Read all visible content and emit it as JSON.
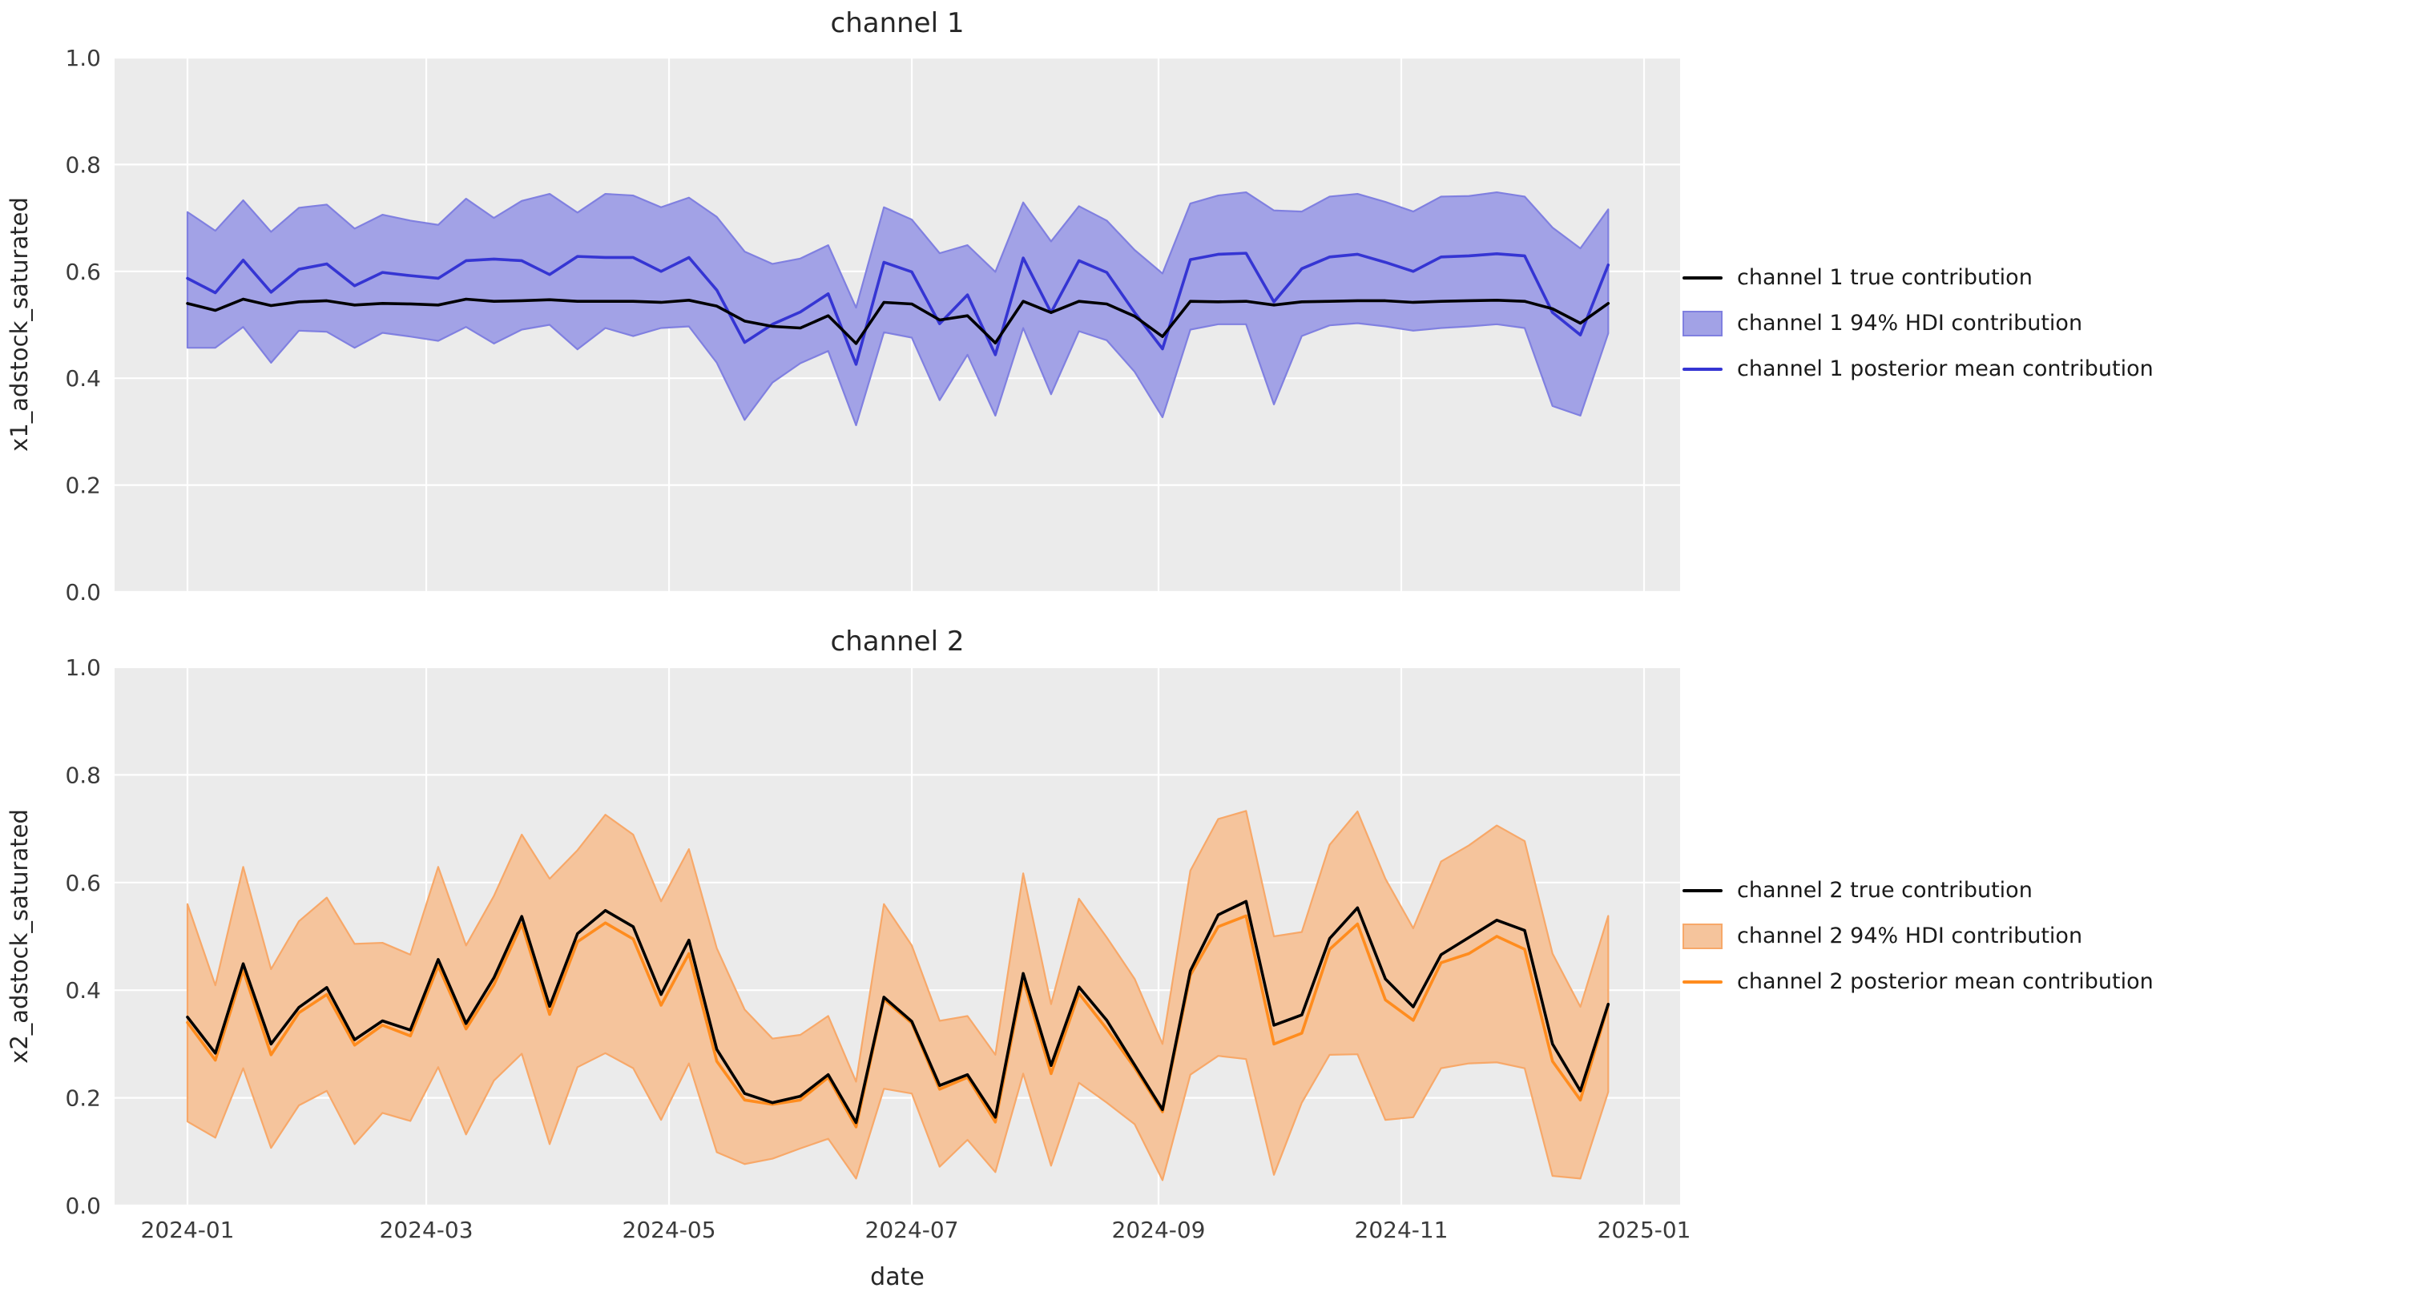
{
  "figure": {
    "background": "#ffffff",
    "axes_background": "#ebebeb",
    "grid_color": "#ffffff",
    "xlabel": "date",
    "xtick_days": [
      0,
      60,
      121,
      182,
      244,
      305,
      366
    ],
    "xtick_labels": [
      "2024-01",
      "2024-03",
      "2024-05",
      "2024-07",
      "2024-09",
      "2024-11",
      "2025-01"
    ],
    "ytick_values": [
      0.0,
      0.2,
      0.4,
      0.6,
      0.8,
      1.0
    ],
    "ytick_labels": [
      "0.0",
      "0.2",
      "0.4",
      "0.6",
      "0.8",
      "1.0"
    ]
  },
  "chart_data": [
    {
      "type": "line",
      "title": "channel 1",
      "xlabel": "",
      "ylabel": "x1_adstock_saturated",
      "ylim": [
        0.0,
        1.0
      ],
      "grid": true,
      "legend_position": "right",
      "legend": [
        "channel 1 true contribution",
        "channel 1 94% HDI contribution",
        "channel 1 posterior mean contribution"
      ],
      "colors": {
        "true_line": "#000000",
        "mean_line": "#3535d3",
        "band_fill": "#a2a2e6",
        "band_edge": "#8080e0"
      },
      "x": [
        "2024-01-01",
        "2024-01-08",
        "2024-01-15",
        "2024-01-22",
        "2024-01-29",
        "2024-02-05",
        "2024-02-12",
        "2024-02-19",
        "2024-02-26",
        "2024-03-04",
        "2024-03-11",
        "2024-03-18",
        "2024-03-25",
        "2024-04-01",
        "2024-04-08",
        "2024-04-15",
        "2024-04-22",
        "2024-04-29",
        "2024-05-06",
        "2024-05-13",
        "2024-05-20",
        "2024-05-27",
        "2024-06-03",
        "2024-06-10",
        "2024-06-17",
        "2024-06-24",
        "2024-07-01",
        "2024-07-08",
        "2024-07-15",
        "2024-07-22",
        "2024-07-29",
        "2024-08-05",
        "2024-08-12",
        "2024-08-19",
        "2024-08-26",
        "2024-09-02",
        "2024-09-09",
        "2024-09-16",
        "2024-09-23",
        "2024-09-30",
        "2024-10-07",
        "2024-10-14",
        "2024-10-21",
        "2024-10-28",
        "2024-11-04",
        "2024-11-11",
        "2024-11-18",
        "2024-11-25",
        "2024-12-02",
        "2024-12-09",
        "2024-12-16",
        "2024-12-23"
      ],
      "series": [
        {
          "name": "true_contribution",
          "values": [
            0.54,
            0.527,
            0.548,
            0.536,
            0.543,
            0.545,
            0.537,
            0.54,
            0.539,
            0.537,
            0.548,
            0.544,
            0.545,
            0.547,
            0.544,
            0.544,
            0.544,
            0.542,
            0.546,
            0.535,
            0.507,
            0.497,
            0.494,
            0.517,
            0.465,
            0.542,
            0.539,
            0.509,
            0.517,
            0.466,
            0.544,
            0.523,
            0.544,
            0.539,
            0.516,
            0.478,
            0.544,
            0.543,
            0.544,
            0.537,
            0.543,
            0.544,
            0.545,
            0.545,
            0.542,
            0.544,
            0.545,
            0.546,
            0.544,
            0.53,
            0.503,
            0.54
          ]
        },
        {
          "name": "posterior_mean",
          "values": [
            0.587,
            0.56,
            0.621,
            0.561,
            0.604,
            0.614,
            0.573,
            0.598,
            0.592,
            0.587,
            0.62,
            0.623,
            0.62,
            0.594,
            0.628,
            0.626,
            0.626,
            0.6,
            0.626,
            0.565,
            0.467,
            0.501,
            0.524,
            0.558,
            0.426,
            0.617,
            0.599,
            0.502,
            0.556,
            0.444,
            0.625,
            0.523,
            0.62,
            0.598,
            0.523,
            0.455,
            0.622,
            0.632,
            0.634,
            0.543,
            0.605,
            0.627,
            0.632,
            0.617,
            0.6,
            0.627,
            0.629,
            0.633,
            0.629,
            0.523,
            0.481,
            0.612
          ]
        },
        {
          "name": "hdi_94_low",
          "values": [
            0.457,
            0.457,
            0.496,
            0.429,
            0.489,
            0.487,
            0.457,
            0.485,
            0.478,
            0.47,
            0.496,
            0.465,
            0.491,
            0.5,
            0.454,
            0.494,
            0.479,
            0.494,
            0.497,
            0.429,
            0.322,
            0.392,
            0.428,
            0.451,
            0.312,
            0.486,
            0.476,
            0.359,
            0.444,
            0.33,
            0.494,
            0.37,
            0.488,
            0.471,
            0.412,
            0.327,
            0.491,
            0.501,
            0.501,
            0.351,
            0.479,
            0.499,
            0.503,
            0.497,
            0.489,
            0.494,
            0.497,
            0.501,
            0.494,
            0.348,
            0.33,
            0.484
          ]
        },
        {
          "name": "hdi_94_high",
          "values": [
            0.711,
            0.676,
            0.733,
            0.674,
            0.719,
            0.725,
            0.68,
            0.706,
            0.695,
            0.687,
            0.736,
            0.7,
            0.732,
            0.745,
            0.71,
            0.745,
            0.742,
            0.72,
            0.738,
            0.702,
            0.637,
            0.614,
            0.624,
            0.649,
            0.532,
            0.72,
            0.697,
            0.634,
            0.649,
            0.599,
            0.729,
            0.656,
            0.722,
            0.695,
            0.64,
            0.596,
            0.727,
            0.742,
            0.748,
            0.714,
            0.712,
            0.74,
            0.745,
            0.73,
            0.712,
            0.74,
            0.741,
            0.748,
            0.74,
            0.682,
            0.643,
            0.716
          ]
        }
      ]
    },
    {
      "type": "line",
      "title": "channel 2",
      "xlabel": "date",
      "ylabel": "x2_adstock_saturated",
      "ylim": [
        0.0,
        1.0
      ],
      "grid": true,
      "legend_position": "right",
      "legend": [
        "channel 2 true contribution",
        "channel 2 94% HDI contribution",
        "channel 2 posterior mean contribution"
      ],
      "colors": {
        "true_line": "#000000",
        "mean_line": "#ff8c1e",
        "band_fill": "#f5c49c",
        "band_edge": "#f7a869"
      },
      "x": [
        "2024-01-01",
        "2024-01-08",
        "2024-01-15",
        "2024-01-22",
        "2024-01-29",
        "2024-02-05",
        "2024-02-12",
        "2024-02-19",
        "2024-02-26",
        "2024-03-04",
        "2024-03-11",
        "2024-03-18",
        "2024-03-25",
        "2024-04-01",
        "2024-04-08",
        "2024-04-15",
        "2024-04-22",
        "2024-04-29",
        "2024-05-06",
        "2024-05-13",
        "2024-05-20",
        "2024-05-27",
        "2024-06-03",
        "2024-06-10",
        "2024-06-17",
        "2024-06-24",
        "2024-07-01",
        "2024-07-08",
        "2024-07-15",
        "2024-07-22",
        "2024-07-29",
        "2024-08-05",
        "2024-08-12",
        "2024-08-19",
        "2024-08-26",
        "2024-09-02",
        "2024-09-09",
        "2024-09-16",
        "2024-09-23",
        "2024-09-30",
        "2024-10-07",
        "2024-10-14",
        "2024-10-21",
        "2024-10-28",
        "2024-11-04",
        "2024-11-11",
        "2024-11-18",
        "2024-11-25",
        "2024-12-02",
        "2024-12-09",
        "2024-12-16",
        "2024-12-23"
      ],
      "series": [
        {
          "name": "true_contribution",
          "values": [
            0.35,
            0.283,
            0.449,
            0.3,
            0.368,
            0.405,
            0.308,
            0.343,
            0.326,
            0.457,
            0.338,
            0.423,
            0.537,
            0.37,
            0.505,
            0.548,
            0.518,
            0.392,
            0.493,
            0.29,
            0.208,
            0.191,
            0.203,
            0.243,
            0.154,
            0.387,
            0.342,
            0.223,
            0.243,
            0.164,
            0.431,
            0.26,
            0.406,
            0.344,
            0.261,
            0.178,
            0.436,
            0.54,
            0.565,
            0.335,
            0.354,
            0.496,
            0.553,
            0.421,
            0.369,
            0.466,
            0.498,
            0.53,
            0.511,
            0.3,
            0.213,
            0.374
          ]
        },
        {
          "name": "posterior_mean",
          "values": [
            0.34,
            0.27,
            0.437,
            0.28,
            0.358,
            0.392,
            0.298,
            0.335,
            0.315,
            0.445,
            0.328,
            0.41,
            0.523,
            0.355,
            0.49,
            0.525,
            0.495,
            0.372,
            0.468,
            0.268,
            0.196,
            0.188,
            0.196,
            0.238,
            0.146,
            0.383,
            0.339,
            0.216,
            0.238,
            0.155,
            0.42,
            0.245,
            0.394,
            0.328,
            0.256,
            0.174,
            0.428,
            0.518,
            0.538,
            0.3,
            0.32,
            0.476,
            0.523,
            0.382,
            0.344,
            0.451,
            0.468,
            0.5,
            0.476,
            0.268,
            0.196,
            0.372
          ]
        },
        {
          "name": "hdi_94_low",
          "values": [
            0.156,
            0.126,
            0.255,
            0.107,
            0.186,
            0.213,
            0.114,
            0.172,
            0.157,
            0.257,
            0.132,
            0.232,
            0.282,
            0.114,
            0.257,
            0.283,
            0.255,
            0.159,
            0.264,
            0.099,
            0.077,
            0.087,
            0.106,
            0.124,
            0.05,
            0.217,
            0.208,
            0.072,
            0.122,
            0.062,
            0.245,
            0.074,
            0.228,
            0.191,
            0.151,
            0.047,
            0.243,
            0.278,
            0.272,
            0.057,
            0.191,
            0.28,
            0.281,
            0.159,
            0.164,
            0.255,
            0.264,
            0.266,
            0.255,
            0.055,
            0.05,
            0.211
          ]
        },
        {
          "name": "hdi_94_high",
          "values": [
            0.56,
            0.409,
            0.629,
            0.439,
            0.528,
            0.572,
            0.486,
            0.488,
            0.466,
            0.629,
            0.483,
            0.575,
            0.689,
            0.607,
            0.66,
            0.726,
            0.689,
            0.565,
            0.662,
            0.478,
            0.364,
            0.31,
            0.317,
            0.352,
            0.23,
            0.56,
            0.483,
            0.343,
            0.352,
            0.28,
            0.617,
            0.374,
            0.57,
            0.498,
            0.421,
            0.3,
            0.622,
            0.718,
            0.733,
            0.5,
            0.508,
            0.67,
            0.732,
            0.607,
            0.515,
            0.639,
            0.669,
            0.706,
            0.677,
            0.468,
            0.369,
            0.538
          ]
        }
      ]
    }
  ]
}
